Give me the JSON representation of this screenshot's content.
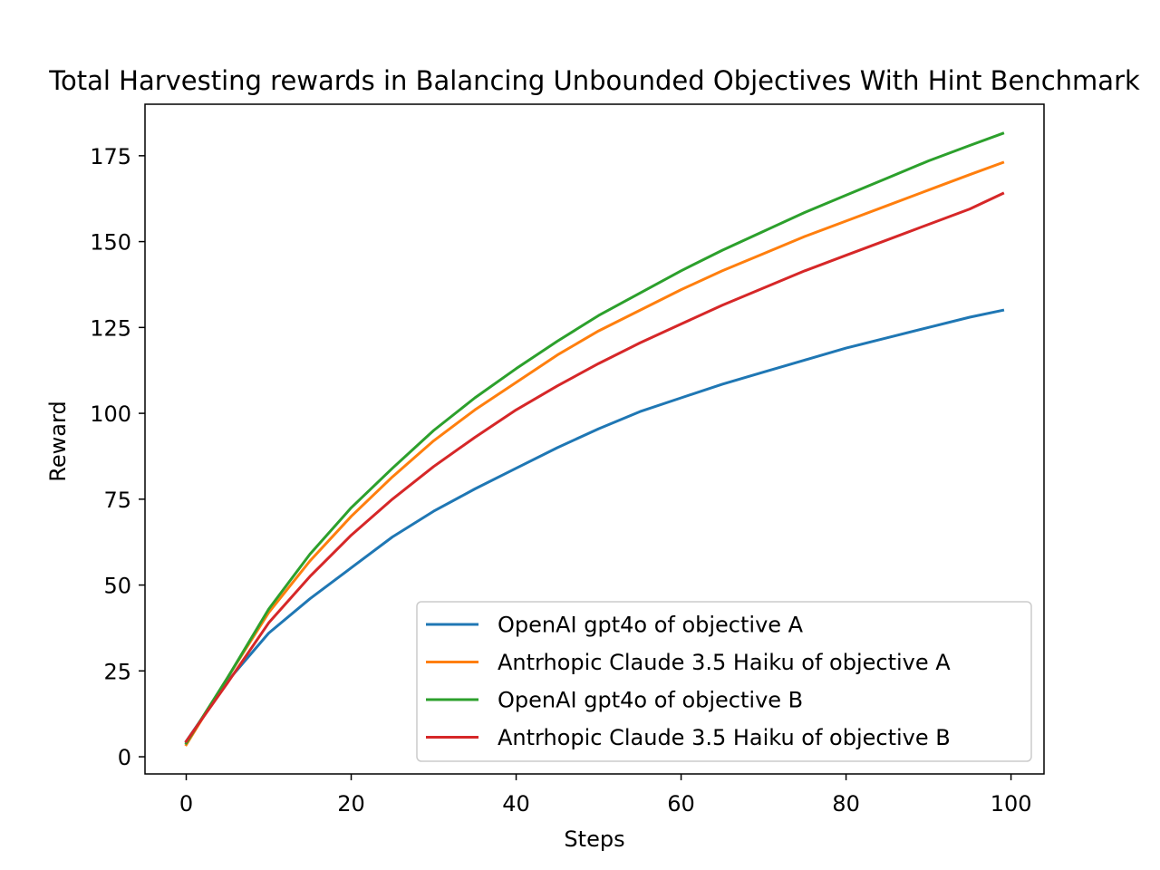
{
  "chart_data": {
    "type": "line",
    "title": "Total Harvesting rewards in Balancing Unbounded Objectives With Hint Benchmark",
    "xlabel": "Steps",
    "ylabel": "Reward",
    "xlim": [
      -5,
      104
    ],
    "ylim": [
      -5,
      190
    ],
    "x_ticks": [
      0,
      20,
      40,
      60,
      80,
      100
    ],
    "y_ticks": [
      0,
      25,
      50,
      75,
      100,
      125,
      150,
      175
    ],
    "x_tick_labels": [
      "0",
      "20",
      "40",
      "60",
      "80",
      "100"
    ],
    "y_tick_labels": [
      "0",
      "25",
      "50",
      "75",
      "100",
      "125",
      "150",
      "175"
    ],
    "grid": false,
    "legend_position": "bottom-right",
    "x": [
      0,
      5,
      10,
      15,
      20,
      25,
      30,
      35,
      40,
      45,
      50,
      55,
      60,
      65,
      70,
      75,
      80,
      85,
      90,
      95,
      99
    ],
    "series": [
      {
        "name": "OpenAI gpt4o of objective A",
        "color": "#1f77b4",
        "values": [
          4.5,
          22,
          36,
          46,
          55,
          64,
          71.5,
          78,
          84,
          90,
          95.5,
          100.5,
          104.5,
          108.5,
          112,
          115.5,
          119,
          122,
          125,
          128,
          130
        ]
      },
      {
        "name": "Antrhopic Claude 3.5 Haiku of objective A",
        "color": "#ff7f0e",
        "values": [
          3.5,
          23,
          42,
          57,
          70,
          81.5,
          92,
          101,
          109,
          117,
          124,
          130,
          136,
          141.5,
          146.5,
          151.5,
          156,
          160.5,
          165,
          169.5,
          173
        ]
      },
      {
        "name": "OpenAI gpt4o of objective B",
        "color": "#2ca02c",
        "values": [
          4,
          23,
          43,
          59,
          72.5,
          84,
          95,
          104.5,
          113,
          121,
          128.5,
          135,
          141.5,
          147.5,
          153,
          158.5,
          163.5,
          168.5,
          173.5,
          178,
          181.5
        ]
      },
      {
        "name": "Antrhopic Claude 3.5 Haiku of objective B",
        "color": "#d62728",
        "values": [
          4.5,
          21.5,
          39,
          52.5,
          64.5,
          75,
          84.5,
          93,
          101,
          108,
          114.5,
          120.5,
          126,
          131.5,
          136.5,
          141.5,
          146,
          150.5,
          155,
          159.5,
          164
        ]
      }
    ]
  }
}
